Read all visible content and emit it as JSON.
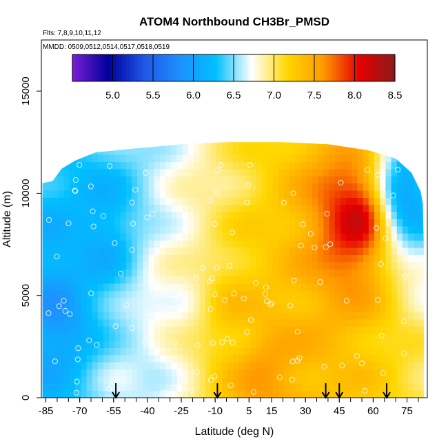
{
  "chart_data": {
    "type": "heatmap",
    "title": "ATOM4 Northbound CH3Br_PMSD",
    "flights_label": "Flts: 7,8,9,10,11,12",
    "dates_label": "MMDD: 0509,0512,0514,0517,0518,0519",
    "xlabel": "Latitude (deg N)",
    "ylabel": "Altitude (m)",
    "xlim": [
      -87,
      84
    ],
    "ylim": [
      0,
      17500
    ],
    "x_ticks": [
      -85,
      -70,
      -55,
      -40,
      -25,
      -10,
      5,
      15,
      30,
      45,
      60,
      75
    ],
    "y_ticks": [
      0,
      5000,
      10000,
      15000
    ],
    "colorbar": {
      "min": 4.5,
      "max": 8.5,
      "ticks": [
        "5.0",
        "5.5",
        "6.0",
        "6.5",
        "7.0",
        "7.5",
        "8.0",
        "8.5"
      ],
      "colors": [
        "#7a1fd6",
        "#00009a",
        "#1e56e6",
        "#1e90ff",
        "#00bfff",
        "#ffffff",
        "#ffd700",
        "#ff9900",
        "#e60000",
        "#8b1a1a"
      ]
    },
    "profile_markers": [
      -54,
      -9,
      39,
      45,
      66
    ],
    "field_description_points": [
      {
        "lat": -80,
        "alt": 4000,
        "value": 5.9
      },
      {
        "lat": -60,
        "alt": 8000,
        "value": 6.1
      },
      {
        "lat": -45,
        "alt": 1000,
        "value": 6.6
      },
      {
        "lat": -30,
        "alt": 5000,
        "value": 6.8
      },
      {
        "lat": 0,
        "alt": 4000,
        "value": 7.3
      },
      {
        "lat": 12,
        "alt": 1000,
        "value": 7.6
      },
      {
        "lat": 52,
        "alt": 8800,
        "value": 8.2
      },
      {
        "lat": 75,
        "alt": 10000,
        "value": 6.0
      }
    ]
  }
}
